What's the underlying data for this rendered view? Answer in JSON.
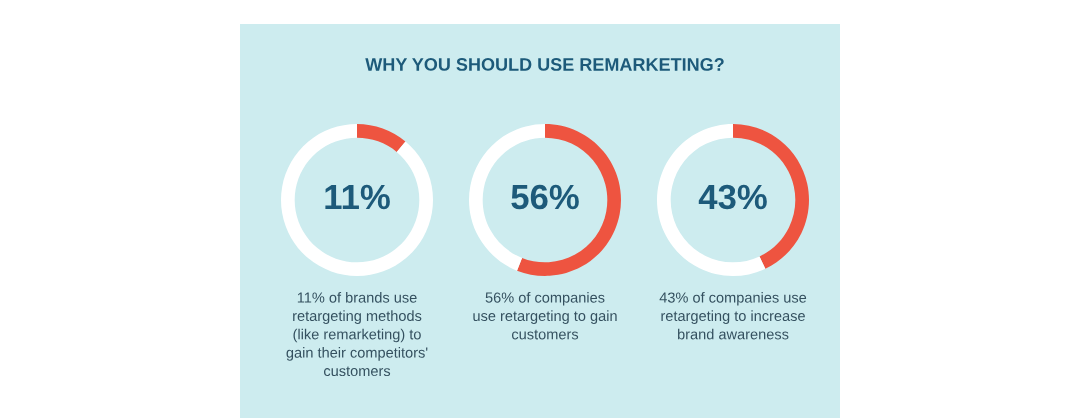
{
  "chart_data": [
    {
      "type": "donut",
      "title": "WHY YOU SHOULD USE REMARKETING?",
      "categories": [
        null,
        null
      ],
      "values": [
        11,
        89
      ],
      "colors": [
        "#ee5440",
        "#ffffff"
      ],
      "value_labels": [
        "11%",
        null
      ],
      "annotations": [
        "11% of brands use\nretargeting methods\n(like remarketing) to\ngain their competitors'\ncustomers"
      ]
    },
    {
      "type": "donut",
      "categories": [
        null,
        null
      ],
      "values": [
        56,
        44
      ],
      "colors": [
        "#ee5440",
        "#ffffff"
      ],
      "value_labels": [
        "56%",
        null
      ],
      "annotations": [
        "56% of companies\nuse retargeting to gain\ncustomers"
      ]
    },
    {
      "type": "donut",
      "categories": [
        null,
        null
      ],
      "values": [
        43,
        57
      ],
      "colors": [
        "#ee5440",
        "#ffffff"
      ],
      "value_labels": [
        "43%",
        null
      ],
      "annotations": [
        "43% of companies use\nretargeting to increase\nbrand awareness"
      ]
    }
  ]
}
